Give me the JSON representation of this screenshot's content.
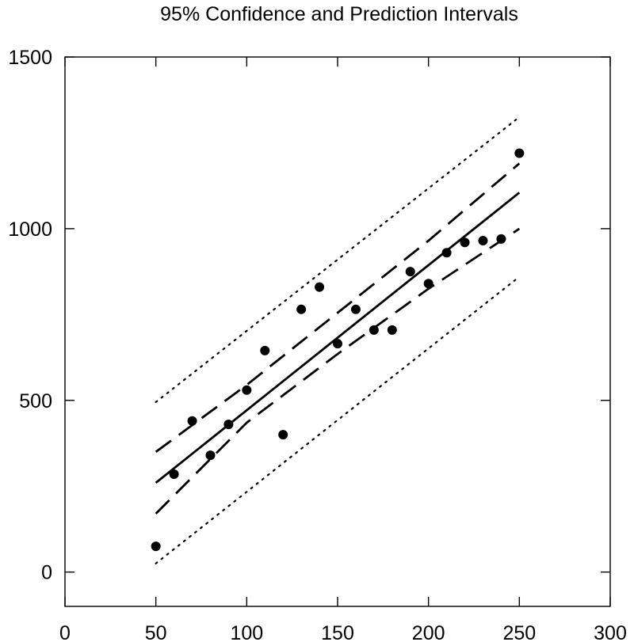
{
  "chart_data": {
    "type": "scatter",
    "title": "95% Confidence and Prediction Intervals",
    "xlabel": "",
    "ylabel": "",
    "xlim": [
      0,
      300
    ],
    "ylim": [
      -100,
      1500
    ],
    "x_ticks": [
      0,
      50,
      100,
      150,
      200,
      250,
      300
    ],
    "y_ticks": [
      0,
      500,
      1000,
      1500
    ],
    "grid": false,
    "points": {
      "x": [
        50,
        60,
        70,
        80,
        90,
        100,
        110,
        120,
        130,
        140,
        150,
        160,
        170,
        180,
        190,
        200,
        210,
        220,
        230,
        240,
        250
      ],
      "y": [
        75,
        285,
        440,
        340,
        430,
        530,
        645,
        400,
        765,
        830,
        665,
        765,
        705,
        705,
        875,
        840,
        930,
        960,
        965,
        970,
        1220
      ]
    },
    "fit_line": {
      "x": [
        50,
        250
      ],
      "y": [
        260,
        1105
      ]
    },
    "confidence_band": {
      "upper": {
        "x": [
          50,
          100,
          150,
          200,
          250
        ],
        "y": [
          350,
          545,
          755,
          965,
          1190
        ]
      },
      "lower": {
        "x": [
          50,
          100,
          150,
          200,
          250
        ],
        "y": [
          170,
          435,
          635,
          825,
          1000
        ]
      }
    },
    "prediction_band": {
      "upper": {
        "x": [
          50,
          250
        ],
        "y": [
          495,
          1325
        ]
      },
      "lower": {
        "x": [
          50,
          250
        ],
        "y": [
          25,
          860
        ]
      }
    }
  }
}
